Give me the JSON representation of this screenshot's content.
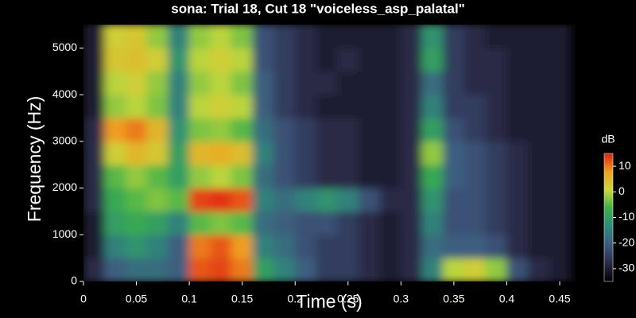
{
  "chart_data": {
    "type": "spectrogram",
    "title": "sona: Trial 18, Cut 18 \"voiceless_asp_palatal\"",
    "x_label": "Time (s)",
    "y_label": "Frequency (Hz)",
    "colorbar_label": "dB",
    "time_bins": [
      0,
      0.02,
      0.04,
      0.06,
      0.08,
      0.1,
      0.12,
      0.14,
      0.16,
      0.18,
      0.2,
      0.22,
      0.24,
      0.26,
      0.28,
      0.3,
      0.32,
      0.34,
      0.36,
      0.38,
      0.4,
      0.42,
      0.44,
      0.46
    ],
    "frequency_bins": [
      0,
      500,
      1000,
      1500,
      2000,
      2500,
      3000,
      3500,
      4000,
      4500,
      5000,
      5500
    ],
    "z": [
      [
        -28,
        -30,
        -30,
        -28,
        -28,
        -28,
        -28,
        -30,
        -30,
        -30,
        -30
      ],
      [
        -20,
        -15,
        -10,
        -8,
        -5,
        2,
        8,
        -2,
        0,
        3,
        2
      ],
      [
        -18,
        -12,
        -8,
        -5,
        -2,
        5,
        10,
        0,
        2,
        4,
        3
      ],
      [
        -18,
        -15,
        -10,
        -3,
        -5,
        3,
        5,
        -3,
        -2,
        2,
        -2
      ],
      [
        -20,
        -20,
        -15,
        -5,
        -10,
        -10,
        -12,
        -15,
        -15,
        -12,
        -15
      ],
      [
        12,
        10,
        -5,
        13,
        -2,
        5,
        -3,
        0,
        -2,
        0,
        -2
      ],
      [
        13,
        12,
        -3,
        14,
        0,
        6,
        -2,
        2,
        0,
        2,
        0
      ],
      [
        10,
        8,
        -5,
        12,
        -3,
        4,
        -5,
        0,
        -3,
        0,
        -3
      ],
      [
        -10,
        -15,
        -18,
        -15,
        -18,
        -15,
        -18,
        -20,
        -20,
        -22,
        -22
      ],
      [
        -15,
        -18,
        -20,
        -18,
        -22,
        -22,
        -22,
        -25,
        -25,
        -25,
        -25
      ],
      [
        -20,
        -22,
        -22,
        -15,
        -25,
        -25,
        -25,
        -28,
        -28,
        -28,
        -28
      ],
      [
        -25,
        -25,
        -22,
        -12,
        -28,
        -28,
        -28,
        -30,
        -28,
        -30,
        -30
      ],
      [
        -25,
        -25,
        -25,
        -15,
        -28,
        -28,
        -28,
        -30,
        -30,
        -28,
        -30
      ],
      [
        -28,
        -28,
        -28,
        -22,
        -30,
        -30,
        -30,
        -30,
        -30,
        -30,
        -30
      ],
      [
        -30,
        -30,
        -30,
        -28,
        -30,
        -30,
        -30,
        -30,
        -30,
        -30,
        -30
      ],
      [
        -28,
        -28,
        -28,
        -28,
        -28,
        -28,
        -28,
        -28,
        -28,
        -28,
        -28
      ],
      [
        -15,
        -18,
        -15,
        -12,
        -8,
        -2,
        -10,
        -15,
        -18,
        -10,
        -12
      ],
      [
        0,
        -20,
        -22,
        -22,
        -20,
        -20,
        -22,
        -25,
        -25,
        -25,
        -25
      ],
      [
        2,
        -20,
        -22,
        -22,
        -22,
        -22,
        -25,
        -25,
        -28,
        -28,
        -28
      ],
      [
        -2,
        -22,
        -25,
        -25,
        -25,
        -25,
        -28,
        -28,
        -28,
        -28,
        -30
      ],
      [
        -22,
        -28,
        -28,
        -28,
        -28,
        -28,
        -30,
        -30,
        -30,
        -30,
        -30
      ],
      [
        -28,
        -30,
        -30,
        -30,
        -30,
        -30,
        -30,
        -30,
        -30,
        -30,
        -30
      ],
      [
        -30,
        -30,
        -30,
        -30,
        -30,
        -30,
        -30,
        -30,
        -30,
        -30,
        -30
      ]
    ],
    "xlim": [
      0,
      0.465
    ],
    "xticks": [
      0,
      0.05,
      0.1,
      0.15,
      0.2,
      0.25,
      0.3,
      0.35,
      0.4,
      0.45
    ],
    "ylim": [
      0,
      5500
    ],
    "yticks": [
      0,
      1000,
      2000,
      3000,
      4000,
      5000
    ],
    "clim": [
      -35,
      15
    ],
    "cticks": [
      -30,
      -20,
      -10,
      0,
      10
    ],
    "colormap": [
      "#000000",
      "#2a2a48",
      "#3d5a80",
      "#2e8b7a",
      "#3cb04a",
      "#c8d83c",
      "#f0a020",
      "#e02010"
    ]
  }
}
